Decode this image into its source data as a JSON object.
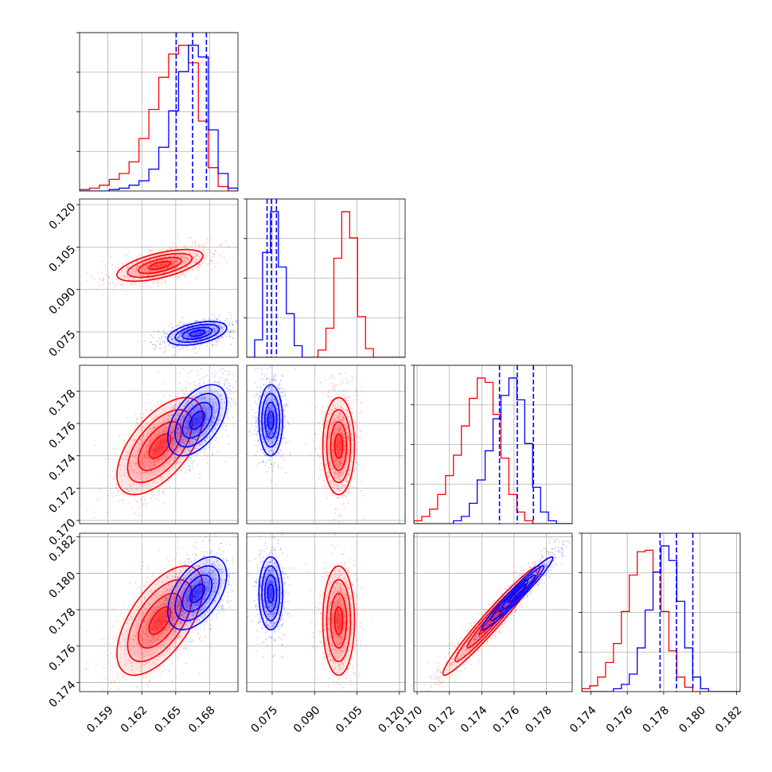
{
  "colors": {
    "red": "#ff0000",
    "blue": "#0000ff",
    "grid": "#b0b0b0",
    "frame": "#000000"
  },
  "chart_data": {
    "type": "corner",
    "grid": true,
    "parameters": [
      {
        "range": [
          0.1565,
          0.1705
        ],
        "ticks": [
          "0.159",
          "0.162",
          "0.165",
          "0.168"
        ]
      },
      {
        "range": [
          0.066,
          0.122
        ],
        "ticks": [
          "0.075",
          "0.090",
          "0.105",
          "0.120"
        ]
      },
      {
        "range": [
          0.1698,
          0.1796
        ],
        "ticks": [
          "0.170",
          "0.172",
          "0.174",
          "0.176",
          "0.178"
        ]
      },
      {
        "range": [
          0.1735,
          0.1822
        ],
        "ticks": [
          "0.174",
          "0.176",
          "0.178",
          "0.180",
          "0.182"
        ]
      }
    ],
    "samples": [
      {
        "color": "#ff0000",
        "mean": [
          0.1636,
          0.0985,
          0.1746,
          0.1774
        ],
        "std": [
          0.0019,
          0.0028,
          0.0015,
          0.0015
        ],
        "correlations": [
          [
            1,
            0.6,
            0.6,
            0.6
          ],
          [
            0.6,
            1,
            0.0,
            0.0
          ],
          [
            0.6,
            0.0,
            1,
            0.97
          ],
          [
            0.6,
            0.0,
            0.97,
            1
          ]
        ],
        "histograms": [
          [
            0.01,
            0.02,
            0.04,
            0.08,
            0.12,
            0.2,
            0.36,
            0.56,
            0.78,
            0.94,
            1.0,
            0.88,
            0.48,
            0.16,
            0.03,
            0.0
          ],
          [
            0.0,
            0.0,
            0.0,
            0.0,
            0.0,
            0.0,
            0.0,
            0.0,
            0.0,
            0.05,
            0.2,
            0.68,
            1.0,
            0.82,
            0.28,
            0.06,
            0.0,
            0.0,
            0.0,
            0.0
          ],
          [
            0.02,
            0.05,
            0.1,
            0.2,
            0.33,
            0.47,
            0.67,
            0.86,
            1.0,
            0.97,
            0.75,
            0.45,
            0.2,
            0.08,
            0.02,
            0.0,
            0.0,
            0.0,
            0.0,
            0.0
          ],
          [
            0.02,
            0.04,
            0.1,
            0.2,
            0.33,
            0.55,
            0.8,
            0.96,
            0.97,
            0.82,
            0.55,
            0.28,
            0.1,
            0.03,
            0.0,
            0.0,
            0.0,
            0.0,
            0.0,
            0.0
          ]
        ]
      },
      {
        "color": "#0000ff",
        "mean": [
          0.1669,
          0.0745,
          0.1762,
          0.1789
        ],
        "std": [
          0.0013,
          0.0021,
          0.0011,
          0.001
        ],
        "correlations": [
          [
            1,
            0.45,
            0.5,
            0.5
          ],
          [
            0.45,
            1,
            0.0,
            0.0
          ],
          [
            0.5,
            0.0,
            1,
            0.97
          ],
          [
            0.5,
            0.0,
            0.97,
            1
          ]
        ],
        "histograms": [
          [
            0.0,
            0.0,
            0.0,
            0.01,
            0.02,
            0.04,
            0.07,
            0.15,
            0.3,
            0.55,
            0.82,
            1.0,
            0.92,
            0.42,
            0.12,
            0.02
          ],
          [
            0.0,
            0.12,
            0.72,
            1.0,
            0.62,
            0.3,
            0.08,
            0.0,
            0.0,
            0.0,
            0.0,
            0.0,
            0.0,
            0.0,
            0.0,
            0.0,
            0.0,
            0.0,
            0.0,
            0.0
          ],
          [
            0.0,
            0.0,
            0.0,
            0.0,
            0.0,
            0.02,
            0.05,
            0.14,
            0.3,
            0.5,
            0.72,
            0.88,
            1.0,
            0.85,
            0.55,
            0.25,
            0.08,
            0.02,
            0.0,
            0.0
          ],
          [
            0.0,
            0.0,
            0.0,
            0.0,
            0.02,
            0.05,
            0.12,
            0.3,
            0.56,
            0.82,
            1.0,
            0.9,
            0.62,
            0.3,
            0.1,
            0.02,
            0.0,
            0.0,
            0.0,
            0.0
          ]
        ],
        "quantile_lines": [
          [
            0.16504,
            0.16649,
            0.16771
          ],
          [
            0.0732,
            0.0747,
            0.0765
          ],
          [
            0.1751,
            0.1762,
            0.1772
          ],
          [
            0.1778,
            0.1787,
            0.1796
          ]
        ]
      }
    ]
  }
}
